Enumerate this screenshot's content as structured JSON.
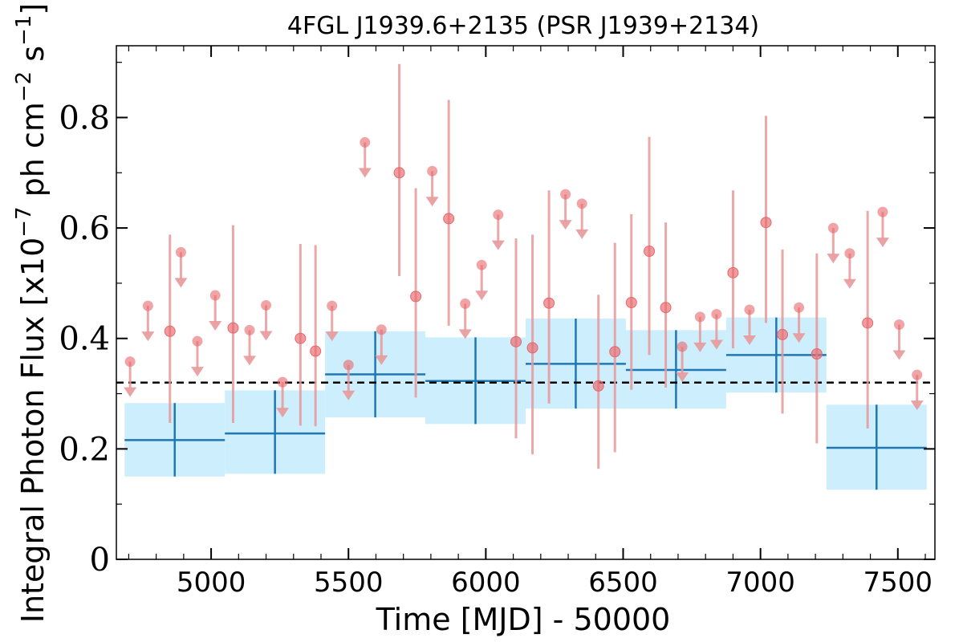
{
  "chart_data": {
    "type": "scatter",
    "title": "4FGL J1939.6+2135 (PSR J1939+2134)",
    "xlabel": "Time [MJD] - 50000",
    "ylabel": "Integral Photon Flux [x10",
    "ylabel_exp1": "−7",
    "ylabel_mid": " ph cm",
    "ylabel_exp2": "−2",
    "ylabel_mid2": " s",
    "ylabel_exp3": "−1",
    "ylabel_end": "]",
    "xlim": [
      4655,
      7635
    ],
    "ylim": [
      0,
      0.93
    ],
    "xticks": [
      5000,
      5500,
      6000,
      6500,
      7000,
      7500
    ],
    "xtick_labels": [
      "5000",
      "5500",
      "6000",
      "6500",
      "7000",
      "7500"
    ],
    "yticks": [
      0,
      0.2,
      0.4,
      0.6,
      0.8
    ],
    "ytick_labels": [
      "0",
      "0.2",
      "0.4",
      "0.6",
      "0.8"
    ],
    "mean_flux": 0.32,
    "colors": {
      "points": "#e8676b",
      "errorbars": "#e8999b",
      "bins_fill": "#cdeefc",
      "bins_line": "#1f77b4",
      "mean_line": "#000000"
    },
    "binned_series": [
      {
        "x_start": 4685,
        "x_end": 5050,
        "y": 0.216,
        "y_low": 0.15,
        "y_high": 0.283
      },
      {
        "x_start": 5050,
        "x_end": 5415,
        "y": 0.228,
        "y_low": 0.155,
        "y_high": 0.306
      },
      {
        "x_start": 5415,
        "x_end": 5780,
        "y": 0.335,
        "y_low": 0.257,
        "y_high": 0.413
      },
      {
        "x_start": 5780,
        "x_end": 6145,
        "y": 0.323,
        "y_low": 0.245,
        "y_high": 0.402
      },
      {
        "x_start": 6145,
        "x_end": 6510,
        "y": 0.354,
        "y_low": 0.273,
        "y_high": 0.436
      },
      {
        "x_start": 6510,
        "x_end": 6875,
        "y": 0.343,
        "y_low": 0.273,
        "y_high": 0.415
      },
      {
        "x_start": 6875,
        "x_end": 7240,
        "y": 0.37,
        "y_low": 0.302,
        "y_high": 0.438
      },
      {
        "x_start": 7240,
        "x_end": 7605,
        "y": 0.202,
        "y_low": 0.126,
        "y_high": 0.28
      }
    ],
    "monthly_detections": [
      {
        "x": 4850,
        "y": 0.413,
        "y_low": 0.247,
        "y_high": 0.588
      },
      {
        "x": 5080,
        "y": 0.419,
        "y_low": 0.247,
        "y_high": 0.605
      },
      {
        "x": 5325,
        "y": 0.4,
        "y_low": 0.242,
        "y_high": 0.571
      },
      {
        "x": 5380,
        "y": 0.377,
        "y_low": 0.241,
        "y_high": 0.569
      },
      {
        "x": 5685,
        "y": 0.7,
        "y_low": 0.513,
        "y_high": 0.897
      },
      {
        "x": 5745,
        "y": 0.476,
        "y_low": 0.293,
        "y_high": 0.672
      },
      {
        "x": 5865,
        "y": 0.617,
        "y_low": 0.423,
        "y_high": 0.832
      },
      {
        "x": 6110,
        "y": 0.394,
        "y_low": 0.219,
        "y_high": 0.581
      },
      {
        "x": 6170,
        "y": 0.383,
        "y_low": 0.19,
        "y_high": 0.588
      },
      {
        "x": 6230,
        "y": 0.464,
        "y_low": 0.282,
        "y_high": 0.668
      },
      {
        "x": 6410,
        "y": 0.314,
        "y_low": 0.164,
        "y_high": 0.479
      },
      {
        "x": 6470,
        "y": 0.376,
        "y_low": 0.194,
        "y_high": 0.573
      },
      {
        "x": 6530,
        "y": 0.465,
        "y_low": 0.307,
        "y_high": 0.625
      },
      {
        "x": 6595,
        "y": 0.558,
        "y_low": 0.37,
        "y_high": 0.765
      },
      {
        "x": 6655,
        "y": 0.456,
        "y_low": 0.311,
        "y_high": 0.61
      },
      {
        "x": 6900,
        "y": 0.519,
        "y_low": 0.382,
        "y_high": 0.668
      },
      {
        "x": 7020,
        "y": 0.61,
        "y_low": 0.428,
        "y_high": 0.803
      },
      {
        "x": 7080,
        "y": 0.407,
        "y_low": 0.264,
        "y_high": 0.561
      },
      {
        "x": 7205,
        "y": 0.372,
        "y_low": 0.21,
        "y_high": 0.554
      },
      {
        "x": 7390,
        "y": 0.428,
        "y_low": 0.237,
        "y_high": 0.631
      }
    ],
    "monthly_upper_limits": [
      {
        "x": 4705,
        "y": 0.358
      },
      {
        "x": 4770,
        "y": 0.459
      },
      {
        "x": 4890,
        "y": 0.556
      },
      {
        "x": 4950,
        "y": 0.395
      },
      {
        "x": 5015,
        "y": 0.478
      },
      {
        "x": 5140,
        "y": 0.415
      },
      {
        "x": 5200,
        "y": 0.46
      },
      {
        "x": 5260,
        "y": 0.321
      },
      {
        "x": 5440,
        "y": 0.459
      },
      {
        "x": 5500,
        "y": 0.352
      },
      {
        "x": 5560,
        "y": 0.755
      },
      {
        "x": 5620,
        "y": 0.416
      },
      {
        "x": 5805,
        "y": 0.703
      },
      {
        "x": 5925,
        "y": 0.463
      },
      {
        "x": 5985,
        "y": 0.533
      },
      {
        "x": 6045,
        "y": 0.624
      },
      {
        "x": 6290,
        "y": 0.661
      },
      {
        "x": 6350,
        "y": 0.644
      },
      {
        "x": 6715,
        "y": 0.385
      },
      {
        "x": 6780,
        "y": 0.439
      },
      {
        "x": 6840,
        "y": 0.444
      },
      {
        "x": 6960,
        "y": 0.452
      },
      {
        "x": 7140,
        "y": 0.456
      },
      {
        "x": 7265,
        "y": 0.6
      },
      {
        "x": 7325,
        "y": 0.554
      },
      {
        "x": 7445,
        "y": 0.629
      },
      {
        "x": 7505,
        "y": 0.425
      },
      {
        "x": 7570,
        "y": 0.334
      }
    ]
  }
}
